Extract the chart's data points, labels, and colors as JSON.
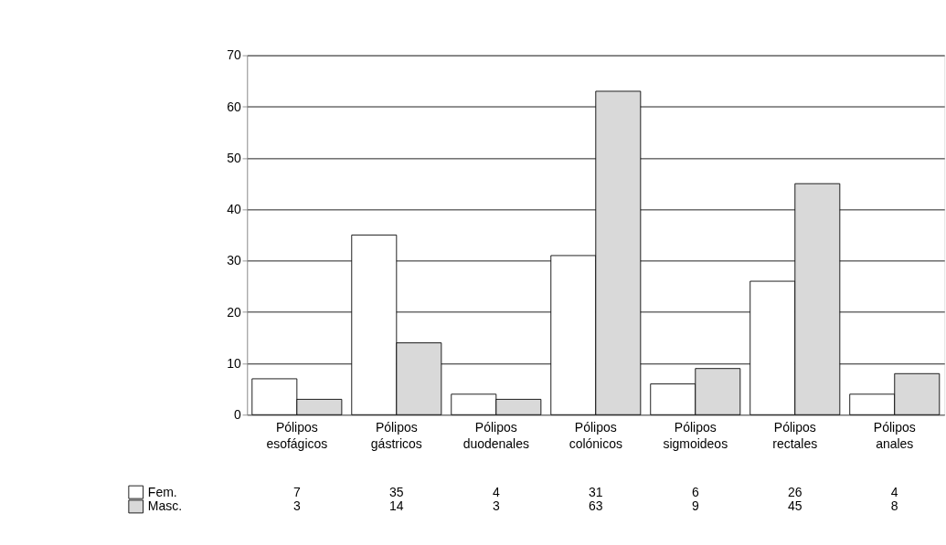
{
  "chart_data": {
    "type": "bar",
    "categories": [
      "Pólipos esofágicos",
      "Pólipos gástricos",
      "Pólipos duodenales",
      "Pólipos colónicos",
      "Pólipos sigmoideos",
      "Pólipos rectales",
      "Pólipos anales"
    ],
    "series": [
      {
        "name": "Fem.",
        "color": "#ffffff",
        "values": [
          7,
          35,
          4,
          31,
          6,
          26,
          4
        ]
      },
      {
        "name": "Masc.",
        "color": "#d9d9d9",
        "values": [
          3,
          14,
          3,
          63,
          9,
          45,
          8
        ]
      }
    ],
    "ylim": [
      0,
      70
    ],
    "yticks": [
      0,
      10,
      20,
      30,
      40,
      50,
      60,
      70
    ],
    "grid": "y",
    "legend": "bottom left",
    "data_labels": true
  }
}
